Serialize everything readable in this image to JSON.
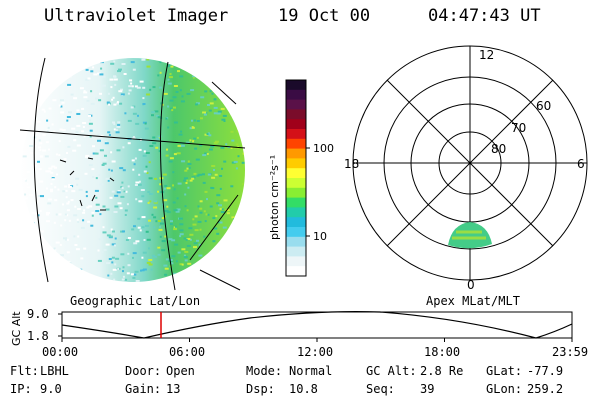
{
  "header": {
    "instrument": "Ultraviolet Imager",
    "date": "19 Oct 00",
    "time": "04:47:43 UT"
  },
  "colorbar": {
    "unit_label": "photon cm⁻²s⁻¹",
    "ticks": [
      "100",
      "10"
    ],
    "colors": [
      "#1a0a2a",
      "#3a0c44",
      "#5a1148",
      "#7a0c2a",
      "#a0001a",
      "#d41018",
      "#ff4400",
      "#ff9900",
      "#ffcc00",
      "#ffff33",
      "#ccff33",
      "#88ee33",
      "#33dd66",
      "#22ccaa",
      "#22bbdd",
      "#44ccee",
      "#99ddee",
      "#ccecf2",
      "#eef6f8",
      "#ffffff"
    ]
  },
  "geo_panel": {
    "label": "Geographic Lat/Lon"
  },
  "polar_panel": {
    "label": "Apex MLat/MLT",
    "lat_labels": [
      "60",
      "70",
      "80"
    ],
    "mlt_labels": [
      "12",
      "18",
      "6",
      "0"
    ]
  },
  "altitude_plot": {
    "ylabel": "GC Alt",
    "yticks": [
      "9.0",
      "1.8"
    ],
    "xticks": [
      "00:00",
      "06:00",
      "12:00",
      "18:00",
      "23:59"
    ],
    "marker_time": "04:47"
  },
  "info": [
    [
      {
        "label": "Flt:",
        "value": "LBHL"
      },
      {
        "label": "Door:",
        "value": "Open"
      },
      {
        "label": "Mode:",
        "value": "Normal"
      },
      {
        "label": "GC Alt:",
        "value": "2.8 Re"
      },
      {
        "label": "GLat:",
        "value": "-77.9"
      }
    ],
    [
      {
        "label": "IP:",
        "value": "9.0"
      },
      {
        "label": "Gain:",
        "value": "13"
      },
      {
        "label": "Dsp:",
        "value": "10.8"
      },
      {
        "label": "Seq:",
        "value": "39"
      },
      {
        "label": "GLon:",
        "value": "259.2"
      }
    ]
  ]
}
